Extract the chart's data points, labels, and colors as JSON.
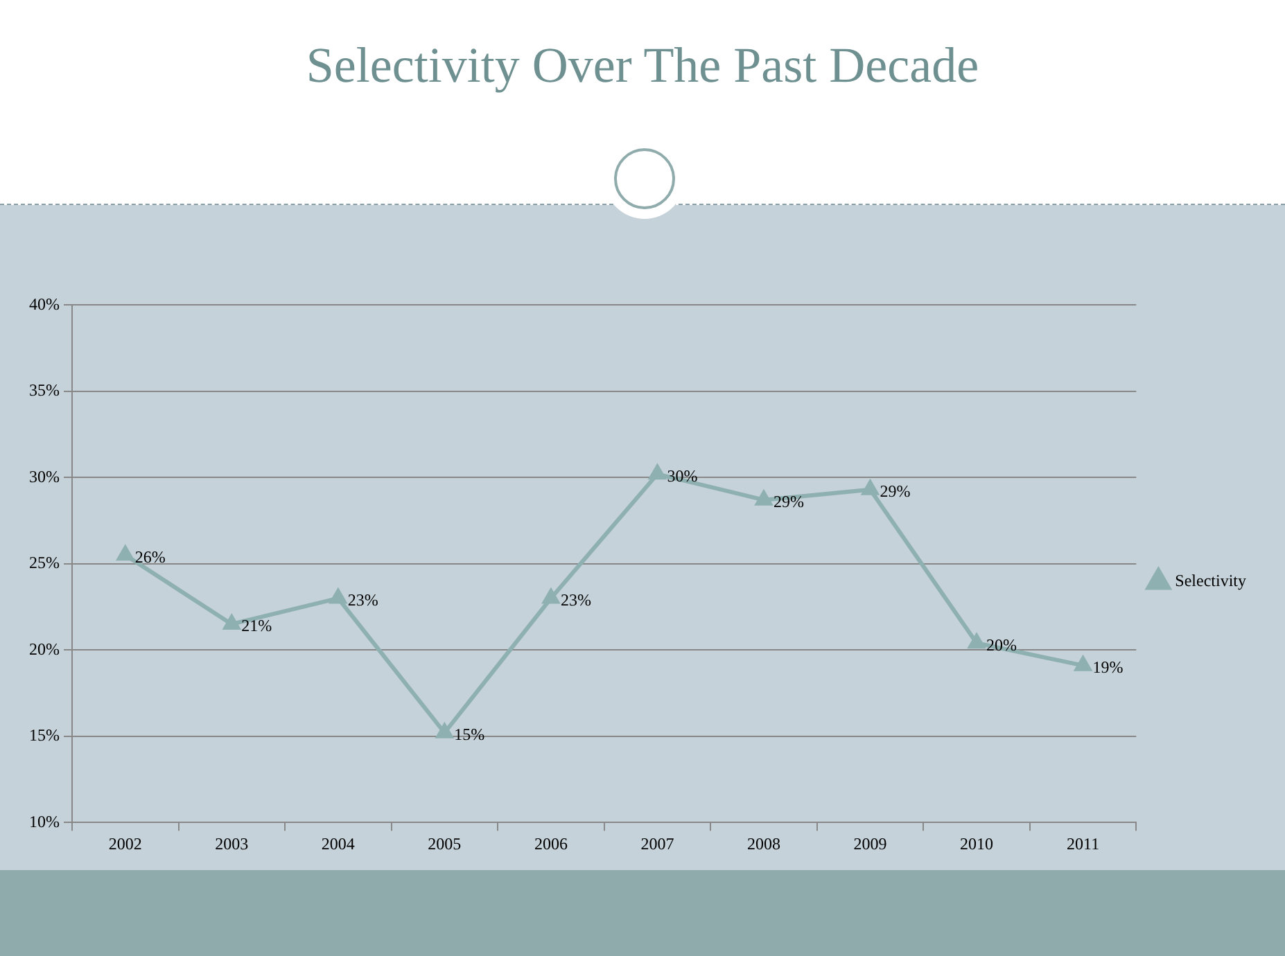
{
  "chart_data": {
    "type": "line",
    "title": "Selectivity Over The Past Decade",
    "categories": [
      "2002",
      "2003",
      "2004",
      "2005",
      "2006",
      "2007",
      "2008",
      "2009",
      "2010",
      "2011"
    ],
    "series": [
      {
        "name": "Selectivity",
        "color": "#8fb0b0",
        "values": [
          25.5,
          21.5,
          23.0,
          15.2,
          23.0,
          30.2,
          28.7,
          29.3,
          20.4,
          19.1
        ],
        "value_labels": [
          "26%",
          "21%",
          "23%",
          "15%",
          "23%",
          "30%",
          "29%",
          "29%",
          "20%",
          "19%"
        ]
      }
    ],
    "ylim": [
      10,
      40
    ],
    "yticks": [
      {
        "value": 10,
        "label": "10%"
      },
      {
        "value": 15,
        "label": "15%"
      },
      {
        "value": 20,
        "label": "20%"
      },
      {
        "value": 25,
        "label": "25%"
      },
      {
        "value": 30,
        "label": "30%"
      },
      {
        "value": 35,
        "label": "35%"
      },
      {
        "value": 40,
        "label": "40%"
      }
    ],
    "grid": "y",
    "legend": "right",
    "marker": "triangle",
    "line_style": "solid"
  }
}
